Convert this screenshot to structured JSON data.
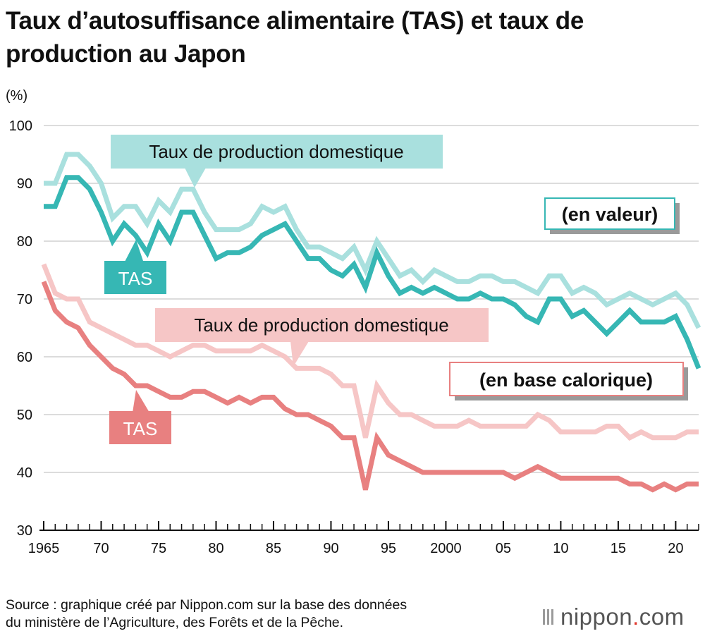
{
  "title": "Taux d’autosuffisance alimentaire (TAS) et taux de production au Japon",
  "source": {
    "line1": "Source : graphique créé par Nippon.com sur la base des données",
    "line2": "du ministère de l’Agriculture, des Forêts et de la Pêche."
  },
  "logo": {
    "name": "nippon",
    "dot": ".",
    "suffix": "com"
  },
  "colors": {
    "teal_dark": "#36b7b4",
    "teal_light": "#a9e0de",
    "red_dark": "#e88080",
    "red_light": "#f6c6c6",
    "axis": "#111111",
    "grid": "#d0d0d0"
  },
  "chart_data": {
    "type": "line",
    "ylabel": "(%)",
    "ylim": [
      30,
      100
    ],
    "yticks": [
      30,
      40,
      50,
      60,
      70,
      80,
      90,
      100
    ],
    "xlim": [
      1965,
      2022
    ],
    "xtick_years": [
      1965,
      1970,
      1975,
      1980,
      1985,
      1990,
      1995,
      2000,
      2005,
      2010,
      2015,
      2020
    ],
    "xtick_labels": [
      "1965",
      "70",
      "75",
      "80",
      "85",
      "90",
      "95",
      "2000",
      "05",
      "10",
      "15",
      "20"
    ],
    "x": [
      1965,
      1966,
      1967,
      1968,
      1969,
      1970,
      1971,
      1972,
      1973,
      1974,
      1975,
      1976,
      1977,
      1978,
      1979,
      1980,
      1981,
      1982,
      1983,
      1984,
      1985,
      1986,
      1987,
      1988,
      1989,
      1990,
      1991,
      1992,
      1993,
      1994,
      1995,
      1996,
      1997,
      1998,
      1999,
      2000,
      2001,
      2002,
      2003,
      2004,
      2005,
      2006,
      2007,
      2008,
      2009,
      2010,
      2011,
      2012,
      2013,
      2014,
      2015,
      2016,
      2017,
      2018,
      2019,
      2020,
      2021,
      2022
    ],
    "series": [
      {
        "key": "value_production",
        "name": "Taux de production domestique (en valeur)",
        "color": "#a9e0de",
        "values": [
          90,
          90,
          95,
          95,
          93,
          90,
          84,
          86,
          86,
          83,
          87,
          85,
          89,
          89,
          85,
          82,
          82,
          82,
          83,
          86,
          85,
          86,
          82,
          79,
          79,
          78,
          77,
          79,
          75,
          80,
          77,
          74,
          75,
          73,
          75,
          74,
          73,
          73,
          74,
          74,
          73,
          73,
          72,
          71,
          74,
          74,
          71,
          72,
          71,
          69,
          70,
          71,
          70,
          69,
          70,
          71,
          69,
          65
        ]
      },
      {
        "key": "value_tas",
        "name": "TAS (en valeur)",
        "color": "#36b7b4",
        "values": [
          86,
          86,
          91,
          91,
          89,
          85,
          80,
          83,
          81,
          78,
          83,
          80,
          85,
          85,
          81,
          77,
          78,
          78,
          79,
          81,
          82,
          83,
          80,
          77,
          77,
          75,
          74,
          76,
          72,
          78,
          74,
          71,
          72,
          71,
          72,
          71,
          70,
          70,
          71,
          70,
          70,
          69,
          67,
          66,
          70,
          70,
          67,
          68,
          66,
          64,
          66,
          68,
          66,
          66,
          66,
          67,
          63,
          58
        ]
      },
      {
        "key": "calorie_production",
        "name": "Taux de production domestique (en base calorique)",
        "color": "#f6c6c6",
        "values": [
          76,
          71,
          70,
          70,
          66,
          65,
          64,
          63,
          62,
          62,
          61,
          60,
          61,
          62,
          62,
          61,
          61,
          61,
          61,
          62,
          61,
          60,
          58,
          58,
          58,
          57,
          55,
          55,
          46,
          55,
          52,
          50,
          50,
          49,
          48,
          48,
          48,
          49,
          48,
          48,
          48,
          48,
          48,
          50,
          49,
          47,
          47,
          47,
          47,
          48,
          48,
          46,
          47,
          46,
          46,
          46,
          47,
          47
        ]
      },
      {
        "key": "calorie_tas",
        "name": "TAS (en base calorique)",
        "color": "#e88080",
        "values": [
          73,
          68,
          66,
          65,
          62,
          60,
          58,
          57,
          55,
          55,
          54,
          53,
          53,
          54,
          54,
          53,
          52,
          53,
          52,
          53,
          53,
          51,
          50,
          50,
          49,
          48,
          46,
          46,
          37,
          46,
          43,
          42,
          41,
          40,
          40,
          40,
          40,
          40,
          40,
          40,
          40,
          39,
          40,
          41,
          40,
          39,
          39,
          39,
          39,
          39,
          39,
          38,
          38,
          37,
          38,
          37,
          38,
          38
        ]
      }
    ],
    "annotations": {
      "value_production_label": "Taux de production domestique",
      "value_tas_label": "TAS",
      "value_group_label": "(en valeur)",
      "calorie_production_label": "Taux de production domestique",
      "calorie_tas_label": "TAS",
      "calorie_group_label": "(en base calorique)"
    }
  }
}
